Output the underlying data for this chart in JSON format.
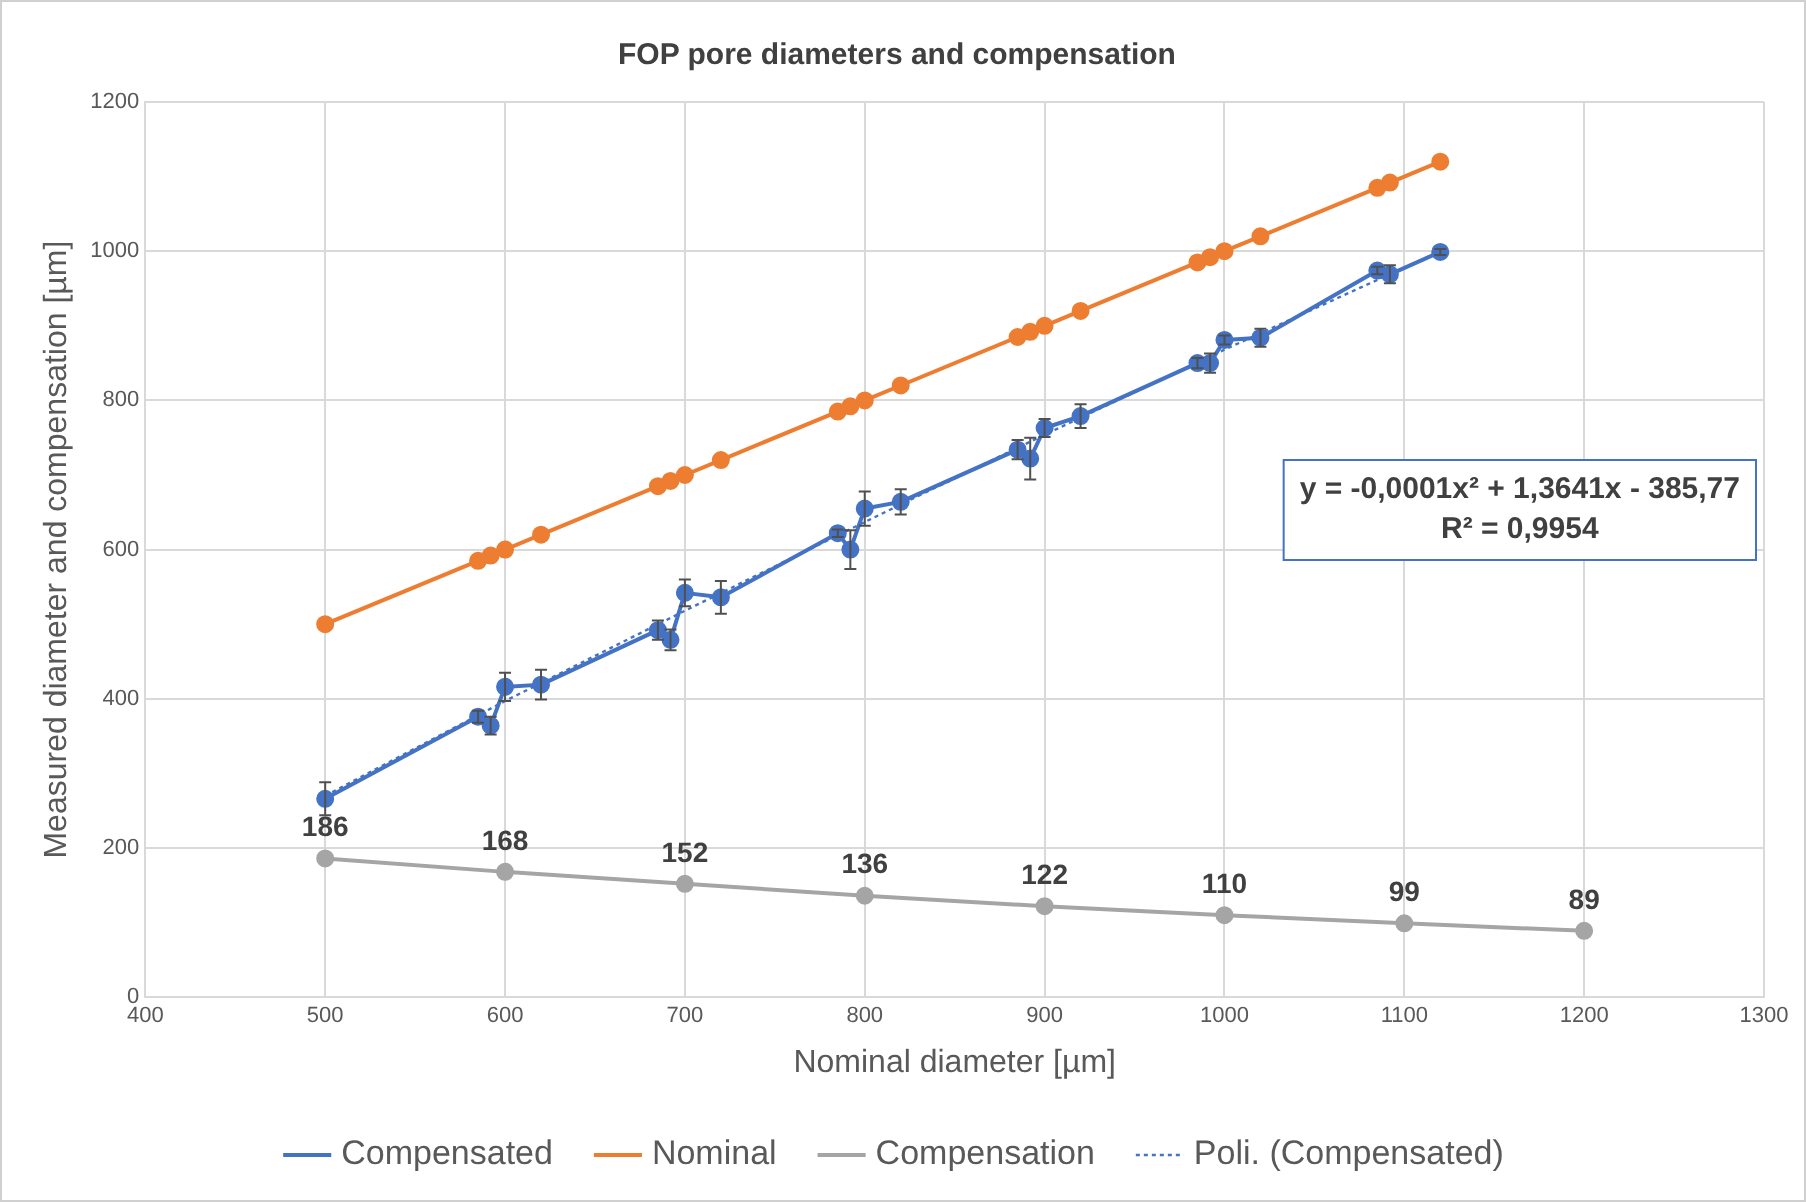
{
  "chart_data": {
    "type": "line",
    "title": "FOP pore diameters and compensation",
    "xlabel": "Nominal diameter [µm]",
    "ylabel": "Measured diameter and compensation [µm]",
    "xlim": [
      400,
      1300
    ],
    "xticks": [
      400,
      500,
      600,
      700,
      800,
      900,
      1000,
      1100,
      1200,
      1300
    ],
    "ylim": [
      0,
      1200
    ],
    "yticks": [
      0,
      200,
      400,
      600,
      800,
      1000,
      1200
    ],
    "grid": true,
    "legend": "bottom",
    "marker": "circle",
    "annotations": [
      "y = -0,0001x² + 1,3641x - 385,77",
      "R² = 0,9954"
    ],
    "series": [
      {
        "name": "Compensated",
        "color": "#4472c4",
        "x": [
          500,
          585,
          592,
          600,
          620,
          685,
          692,
          700,
          720,
          785,
          792,
          800,
          820,
          885,
          892,
          900,
          920,
          985,
          992,
          1000,
          1020,
          1085,
          1092,
          1120
        ],
        "values": [
          266,
          376,
          364,
          416,
          419,
          492,
          479,
          542,
          536,
          622,
          600,
          655,
          664,
          734,
          722,
          763,
          779,
          850,
          850,
          881,
          884,
          974,
          969,
          999
        ],
        "errors": [
          22,
          8,
          12,
          19,
          20,
          13,
          14,
          18,
          22,
          5,
          26,
          23,
          17,
          13,
          28,
          12,
          16,
          7,
          13,
          6,
          12,
          5,
          12,
          4
        ]
      },
      {
        "name": "Nominal",
        "color": "#ed7d31",
        "x": [
          500,
          585,
          592,
          600,
          620,
          685,
          692,
          700,
          720,
          785,
          792,
          800,
          820,
          885,
          892,
          900,
          920,
          985,
          992,
          1000,
          1020,
          1085,
          1092,
          1120
        ],
        "values": [
          500,
          585,
          592,
          600,
          620,
          685,
          692,
          700,
          720,
          785,
          792,
          800,
          820,
          885,
          892,
          900,
          920,
          985,
          992,
          1000,
          1020,
          1085,
          1092,
          1120
        ]
      },
      {
        "name": "Compensation",
        "color": "#a5a5a5",
        "x": [
          500,
          600,
          700,
          800,
          900,
          1000,
          1100,
          1200
        ],
        "values": [
          186,
          168,
          152,
          136,
          122,
          110,
          99,
          89
        ],
        "value_labels": [
          "186",
          "168",
          "152",
          "136",
          "122",
          "110",
          "99",
          "89"
        ]
      },
      {
        "name": "Poli. (Compensated)",
        "color": "#4472c4",
        "type": "line",
        "line_style": "dotted",
        "marker": "none",
        "x": [
          500,
          600,
          700,
          800,
          900,
          1000,
          1120
        ],
        "values": [
          270,
          397,
          518,
          637,
          754,
          868,
          1000
        ]
      }
    ]
  }
}
